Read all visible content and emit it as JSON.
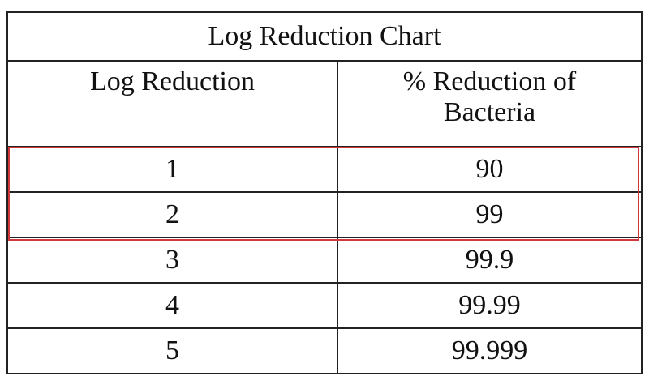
{
  "table": {
    "title": "Log Reduction Chart",
    "header": [
      "Log Reduction",
      "% Reduction of Bacteria"
    ],
    "rows": [
      [
        1,
        90
      ],
      [
        2,
        99
      ],
      [
        3,
        99.9
      ],
      [
        4,
        99.99
      ],
      [
        5,
        99.999
      ]
    ]
  }
}
